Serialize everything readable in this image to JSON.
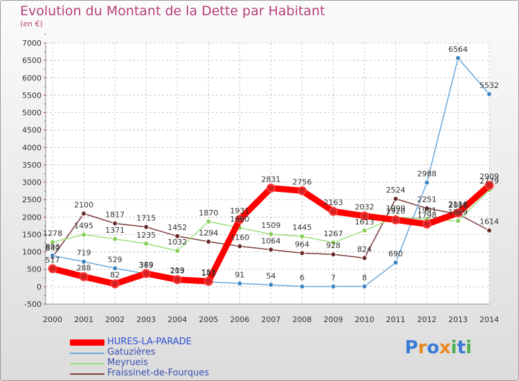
{
  "title": "Evolution du Montant de la Dette par Habitant",
  "subtitle": "(en €)",
  "logo": {
    "letters": [
      "P",
      "r",
      "o",
      "x",
      "i",
      "t",
      "i"
    ],
    "colors": [
      "#3a7bd5",
      "#e8891c",
      "#3a7bd5",
      "#e8891c",
      "#4caf50",
      "#3a7bd5",
      "#4caf50"
    ]
  },
  "chart_data": {
    "type": "line",
    "x": [
      2000,
      2001,
      2002,
      2003,
      2004,
      2005,
      2006,
      2007,
      2008,
      2009,
      2010,
      2011,
      2012,
      2013,
      2014
    ],
    "ylim": [
      -500,
      7000
    ],
    "yticks": [
      -500,
      0,
      500,
      1000,
      1500,
      2000,
      2500,
      3000,
      3500,
      4000,
      4500,
      5000,
      5500,
      6000,
      6500,
      7000
    ],
    "grid": true,
    "series": [
      {
        "name": "HURES-LA-PARADE",
        "color": "#ff0000",
        "marker": "#d42020",
        "values": [
          517,
          288,
          82,
          379,
          203,
          153,
          1931,
          2831,
          2756,
          2163,
          2032,
          1920,
          1798,
          2116,
          2909
        ],
        "labels": [
          "517",
          "288",
          "82",
          "379",
          "203",
          "153",
          "1931",
          "2831",
          "2756",
          "2163",
          "2032",
          "1920",
          "1798",
          "2116",
          "2909"
        ]
      },
      {
        "name": "Gatuzières",
        "color": "#6aa6d8",
        "marker": "#3c84c2",
        "values": [
          893,
          719,
          529,
          369,
          219,
          141,
          91,
          54,
          6,
          7,
          8,
          690,
          2988,
          6564,
          5532
        ],
        "labels": [
          "893",
          "719",
          "529",
          "369",
          "219",
          "141",
          "91",
          "54",
          "6",
          "7",
          "8",
          "690",
          "2988",
          "6564",
          "5532"
        ]
      },
      {
        "name": "Meyrueis",
        "color": "#99e07a",
        "marker": "#86cc55",
        "values": [
          1278,
          1495,
          1371,
          1235,
          1032,
          1870,
          1690,
          1509,
          1445,
          1267,
          1613,
          1999,
          1941,
          1889,
          2779
        ],
        "labels": [
          "1278",
          "1495",
          "1371",
          "1235",
          "1032",
          "1870",
          "1690",
          "1509",
          "1445",
          "1267",
          "1613",
          "1999",
          "1941",
          "1889",
          "2779"
        ]
      },
      {
        "name": "Fraissinet-de-Fourques",
        "color": "#7a3a3a",
        "marker": "#6a2a2a",
        "values": [
          849,
          2100,
          1817,
          1715,
          1452,
          1294,
          1160,
          1064,
          964,
          928,
          824,
          2524,
          2251,
          2086,
          1614
        ],
        "labels": [
          "849",
          "2100",
          "1817",
          "1715",
          "1452",
          "1294",
          "1160",
          "1064",
          "964",
          "928",
          "824",
          "2524",
          "2251",
          "2086",
          "1614"
        ]
      }
    ]
  }
}
